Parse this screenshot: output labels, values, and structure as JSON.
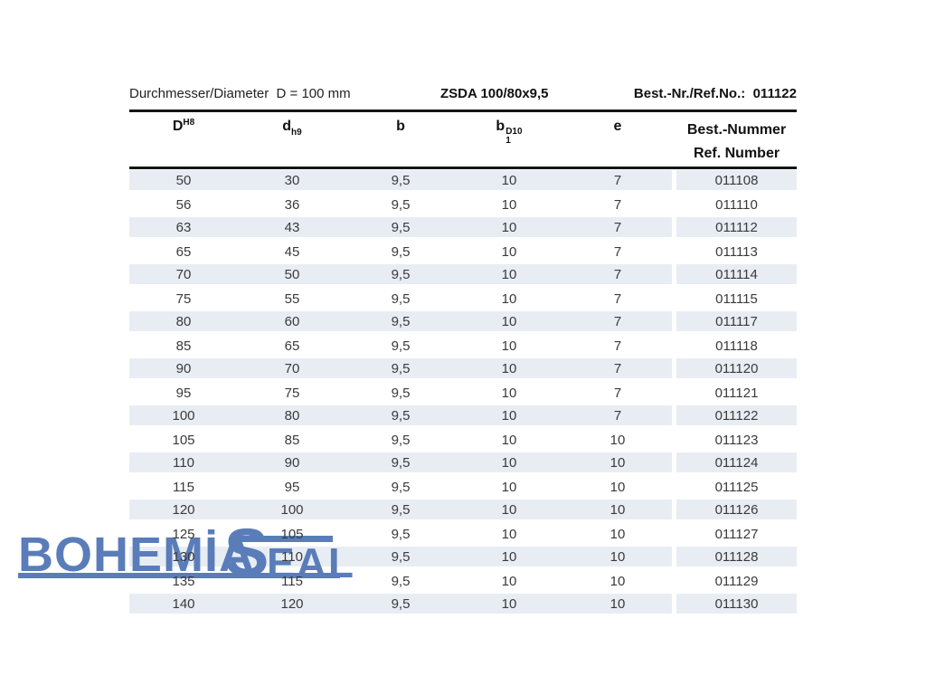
{
  "meta": {
    "left": "Durchmesser/Diameter  D = 100 mm",
    "product": "ZSDA 100/80x9,5",
    "ref_label": "Best.-Nr./Ref.No.:",
    "ref_value": "011122"
  },
  "logo": {
    "word_main": "BOHEMİA",
    "word_s": "S",
    "word_rest": "EAL",
    "color": "#5a7db9"
  },
  "table": {
    "headers": {
      "col1": {
        "base": "D",
        "sup": "H8"
      },
      "col2": {
        "base": "d",
        "sub": "h9"
      },
      "col3": {
        "base": "b"
      },
      "col4": {
        "base": "b",
        "sub": "1",
        "sup": "D10"
      },
      "col5": {
        "base": "e"
      },
      "col6": {
        "line1": "Best.-Nummer",
        "line2": "Ref. Number"
      }
    },
    "rows": [
      [
        "50",
        "30",
        "9,5",
        "10",
        "7",
        "011108"
      ],
      [
        "56",
        "36",
        "9,5",
        "10",
        "7",
        "011110"
      ],
      [
        "63",
        "43",
        "9,5",
        "10",
        "7",
        "011112"
      ],
      [
        "65",
        "45",
        "9,5",
        "10",
        "7",
        "011113"
      ],
      [
        "70",
        "50",
        "9,5",
        "10",
        "7",
        "011114"
      ],
      [
        "75",
        "55",
        "9,5",
        "10",
        "7",
        "011115"
      ],
      [
        "80",
        "60",
        "9,5",
        "10",
        "7",
        "011117"
      ],
      [
        "85",
        "65",
        "9,5",
        "10",
        "7",
        "011118"
      ],
      [
        "90",
        "70",
        "9,5",
        "10",
        "7",
        "011120"
      ],
      [
        "95",
        "75",
        "9,5",
        "10",
        "7",
        "011121"
      ],
      [
        "100",
        "80",
        "9,5",
        "10",
        "7",
        "011122"
      ],
      [
        "105",
        "85",
        "9,5",
        "10",
        "10",
        "011123"
      ],
      [
        "110",
        "90",
        "9,5",
        "10",
        "10",
        "011124"
      ],
      [
        "115",
        "95",
        "9,5",
        "10",
        "10",
        "011125"
      ],
      [
        "120",
        "100",
        "9,5",
        "10",
        "10",
        "011126"
      ],
      [
        "125",
        "105",
        "9,5",
        "10",
        "10",
        "011127"
      ],
      [
        "130",
        "110",
        "9,5",
        "10",
        "10",
        "011128"
      ],
      [
        "135",
        "115",
        "9,5",
        "10",
        "10",
        "011129"
      ],
      [
        "140",
        "120",
        "9,5",
        "10",
        "10",
        "011130"
      ]
    ]
  },
  "colors": {
    "stripe": "#e8edf4",
    "rule": "#151515",
    "logo_blue": "#5a7db9",
    "cell_text": "#3a3a3a"
  }
}
